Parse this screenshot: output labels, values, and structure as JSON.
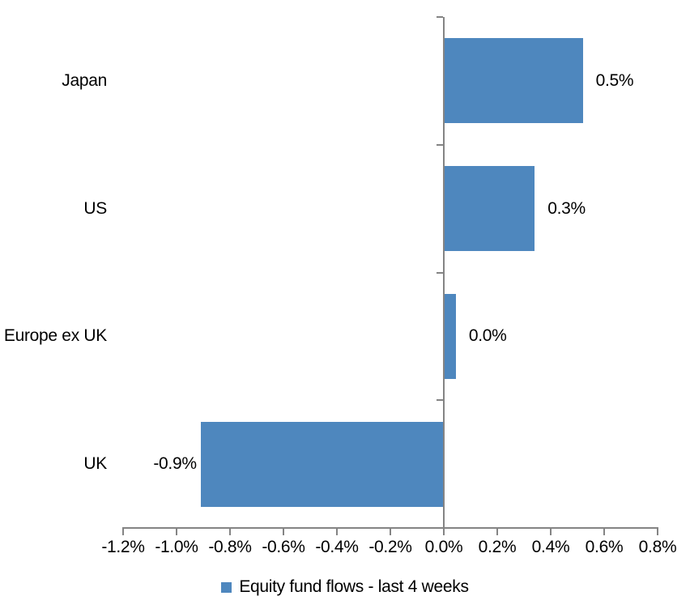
{
  "chart_data": {
    "type": "bar",
    "orientation": "horizontal",
    "title": "",
    "xlabel": "",
    "ylabel": "",
    "categories": [
      "Japan",
      "US",
      "Europe ex UK",
      "UK"
    ],
    "values": [
      0.5,
      0.3,
      0.0,
      -0.9
    ],
    "value_labels": [
      "0.5%",
      "0.3%",
      "0.0%",
      "-0.9%"
    ],
    "bar_extents": [
      0.52,
      0.34,
      0.045,
      -0.91
    ],
    "xlim": [
      -1.2,
      0.8
    ],
    "x_ticks": [
      -1.2,
      -1.0,
      -0.8,
      -0.6,
      -0.4,
      -0.2,
      0.0,
      0.2,
      0.4,
      0.6,
      0.8
    ],
    "x_tick_labels": [
      "-1.2%",
      "-1.0%",
      "-0.8%",
      "-0.6%",
      "-0.4%",
      "-0.2%",
      "0.0%",
      "0.2%",
      "0.4%",
      "0.6%",
      "0.8%"
    ],
    "grid": false,
    "legend_position": "bottom",
    "legend": [
      {
        "label": "Equity fund flows - last 4 weeks",
        "swatch_color": "#4E87BE"
      }
    ],
    "colors": {
      "bar": "#4E87BE",
      "axis": "#848484",
      "text": "#000000",
      "background": "#FFFFFF"
    }
  }
}
